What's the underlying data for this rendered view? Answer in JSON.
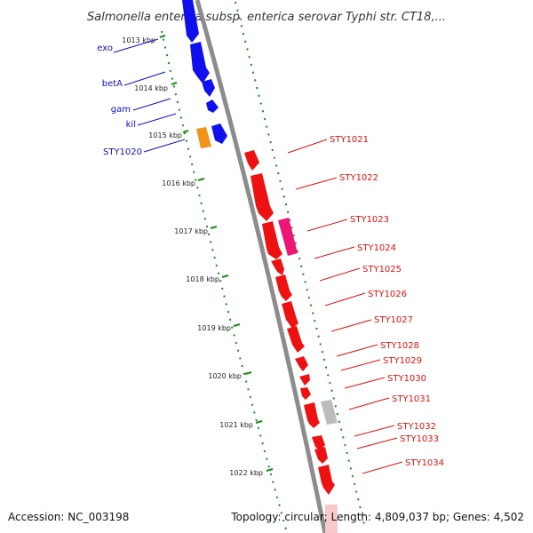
{
  "title": "Salmonella enterica subsp. enterica serovar Typhi str. CT18,...",
  "footer": {
    "accession": "Accession: NC_003198",
    "topology": "Topology: circular; Length: 4,809,037 bp; Genes: 4,502"
  },
  "colors": {
    "backbone": "#8c8c8c",
    "tick": "#1a8a1a",
    "left_label": "#1010c0",
    "right_label": "#dd1111",
    "blue_gene": "#1010ee",
    "orange_gene": "#f29418",
    "red_gene": "#ee1111",
    "magenta_gene": "#ee1577",
    "grey_gene": "#bcbcbc"
  },
  "ticks": [
    "1013 kbp",
    "1014 kbp",
    "1015 kbp",
    "1016 kbp",
    "1017 kbp",
    "1018 kbp",
    "1019 kbp",
    "1020 kbp",
    "1021 kbp",
    "1022 kbp"
  ],
  "left_genes": [
    "exo",
    "betA",
    "gam",
    "kil",
    "STY1020"
  ],
  "right_genes": [
    "STY1021",
    "STY1022",
    "STY1023",
    "STY1024",
    "STY1025",
    "STY1026",
    "STY1027",
    "STY1028",
    "STY1029",
    "STY1030",
    "STY1031",
    "STY1032",
    "STY1033",
    "STY1034"
  ]
}
